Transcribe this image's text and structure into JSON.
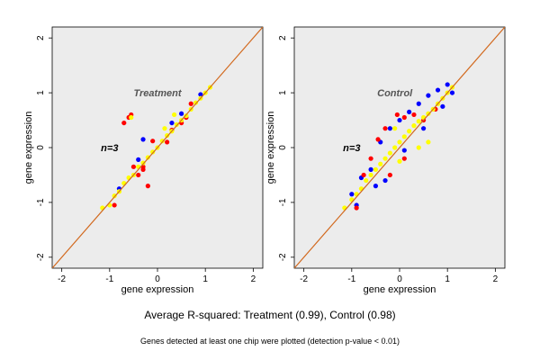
{
  "chart_data": [
    {
      "type": "scatter",
      "title": "Treatment",
      "annotation": "n=3",
      "xlabel": "gene expression",
      "ylabel": "gene expression",
      "xlim": [
        -2.2,
        2.2
      ],
      "ylim": [
        -2.2,
        2.2
      ],
      "xticks": [
        -2,
        -1,
        0,
        1,
        2
      ],
      "yticks": [
        -2,
        -1,
        0,
        1,
        2
      ],
      "grid": false,
      "diagonal": "y = x",
      "series": [
        {
          "color": "#0000ff",
          "points": [
            [
              0.9,
              0.97
            ],
            [
              -0.8,
              -0.75
            ],
            [
              0.5,
              0.62
            ],
            [
              -0.4,
              -0.22
            ],
            [
              -0.3,
              0.15
            ],
            [
              0.3,
              0.45
            ]
          ]
        },
        {
          "color": "#ff0000",
          "points": [
            [
              -0.6,
              0.55
            ],
            [
              -0.7,
              0.45
            ],
            [
              -0.55,
              0.6
            ],
            [
              -0.3,
              -0.35
            ],
            [
              0.2,
              0.1
            ],
            [
              -0.2,
              -0.7
            ],
            [
              -0.3,
              -0.4
            ],
            [
              -0.1,
              0.12
            ],
            [
              0.3,
              0.32
            ],
            [
              0.5,
              0.45
            ],
            [
              0.7,
              0.8
            ],
            [
              -0.5,
              -0.35
            ],
            [
              0.6,
              0.55
            ],
            [
              -0.9,
              -1.05
            ],
            [
              -0.4,
              -0.5
            ]
          ]
        },
        {
          "color": "#ffff00",
          "points": [
            [
              -1.15,
              -1.1
            ],
            [
              -1.0,
              -1.05
            ],
            [
              -0.9,
              -0.88
            ],
            [
              -0.8,
              -0.8
            ],
            [
              -0.7,
              -0.65
            ],
            [
              -0.6,
              -0.55
            ],
            [
              -0.5,
              -0.5
            ],
            [
              -0.4,
              -0.35
            ],
            [
              -0.3,
              -0.28
            ],
            [
              -0.2,
              -0.18
            ],
            [
              -0.1,
              -0.08
            ],
            [
              0.0,
              0.0
            ],
            [
              0.1,
              0.12
            ],
            [
              0.2,
              0.22
            ],
            [
              0.3,
              0.3
            ],
            [
              0.4,
              0.42
            ],
            [
              0.5,
              0.5
            ],
            [
              0.6,
              0.58
            ],
            [
              0.7,
              0.7
            ],
            [
              0.8,
              0.82
            ],
            [
              0.9,
              0.9
            ],
            [
              1.0,
              1.0
            ],
            [
              1.1,
              1.1
            ],
            [
              -0.55,
              0.55
            ],
            [
              0.15,
              0.35
            ],
            [
              0.35,
              0.6
            ]
          ]
        }
      ]
    },
    {
      "type": "scatter",
      "title": "Control",
      "annotation": "n=3",
      "xlabel": "gene expression",
      "ylabel": "gene expression",
      "xlim": [
        -2.2,
        2.2
      ],
      "ylim": [
        -2.2,
        2.2
      ],
      "xticks": [
        -2,
        -1,
        0,
        1,
        2
      ],
      "yticks": [
        -2,
        -1,
        0,
        1,
        2
      ],
      "grid": false,
      "diagonal": "y = x",
      "series": [
        {
          "color": "#0000ff",
          "points": [
            [
              -1.0,
              -0.85
            ],
            [
              -0.8,
              -0.55
            ],
            [
              -0.6,
              -0.4
            ],
            [
              -0.4,
              0.1
            ],
            [
              -0.2,
              0.35
            ],
            [
              0.0,
              0.5
            ],
            [
              0.2,
              0.65
            ],
            [
              0.4,
              0.8
            ],
            [
              0.6,
              0.95
            ],
            [
              0.8,
              1.05
            ],
            [
              1.0,
              1.15
            ],
            [
              -0.9,
              -1.05
            ],
            [
              -0.5,
              -0.7
            ],
            [
              0.1,
              -0.05
            ],
            [
              0.5,
              0.35
            ],
            [
              0.9,
              0.75
            ],
            [
              -0.3,
              -0.6
            ],
            [
              1.1,
              1.0
            ]
          ]
        },
        {
          "color": "#ff0000",
          "points": [
            [
              -0.05,
              0.6
            ],
            [
              0.1,
              0.55
            ],
            [
              -0.3,
              0.35
            ],
            [
              0.5,
              0.5
            ],
            [
              0.75,
              0.7
            ],
            [
              -0.6,
              -0.2
            ],
            [
              -0.2,
              -0.5
            ],
            [
              -0.45,
              0.15
            ],
            [
              -0.75,
              -0.5
            ],
            [
              0.3,
              0.6
            ],
            [
              0.1,
              -0.2
            ],
            [
              -0.9,
              -1.1
            ]
          ]
        },
        {
          "color": "#ffff00",
          "points": [
            [
              -1.15,
              -1.1
            ],
            [
              -1.0,
              -0.95
            ],
            [
              -0.9,
              -0.85
            ],
            [
              -0.8,
              -0.75
            ],
            [
              -0.7,
              -0.6
            ],
            [
              -0.6,
              -0.5
            ],
            [
              -0.5,
              -0.4
            ],
            [
              -0.4,
              -0.3
            ],
            [
              -0.3,
              -0.2
            ],
            [
              -0.2,
              -0.1
            ],
            [
              -0.1,
              0.0
            ],
            [
              0.0,
              0.1
            ],
            [
              0.1,
              0.2
            ],
            [
              0.2,
              0.3
            ],
            [
              0.3,
              0.4
            ],
            [
              0.4,
              0.48
            ],
            [
              0.5,
              0.55
            ],
            [
              0.6,
              0.62
            ],
            [
              0.7,
              0.7
            ],
            [
              0.8,
              0.8
            ],
            [
              0.9,
              0.9
            ],
            [
              1.0,
              1.0
            ],
            [
              1.1,
              1.1
            ],
            [
              0.4,
              0.0
            ],
            [
              0.6,
              0.1
            ],
            [
              -0.1,
              0.35
            ],
            [
              0.0,
              -0.25
            ]
          ]
        }
      ]
    }
  ],
  "caption": {
    "main": "Average R-squared: Treatment (0.99), Control (0.98)",
    "sub": "Genes detected at least one chip were plotted (detection p-value < 0.01)"
  },
  "colors": {
    "panel_background": "#ececec",
    "diagonal_line": "#d2691e"
  }
}
